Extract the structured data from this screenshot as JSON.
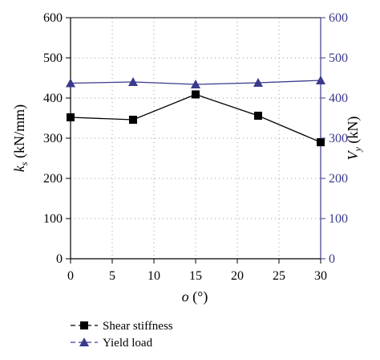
{
  "chart_data": {
    "type": "line",
    "x": [
      0,
      7.5,
      15,
      22.5,
      30
    ],
    "xlabel": "o (°)",
    "xlim": [
      0,
      30
    ],
    "xticks": [
      "0",
      "5",
      "10",
      "15",
      "20",
      "25",
      "30"
    ],
    "ylabel_left": "k_s (kN/mm)",
    "ylabel_right": "V_y (kN)",
    "ylim_left": [
      0,
      600
    ],
    "ylim_right": [
      0,
      600
    ],
    "yticks_left": [
      "0",
      "100",
      "200",
      "300",
      "400",
      "500",
      "600"
    ],
    "yticks_right": [
      "0",
      "100",
      "200",
      "300",
      "400",
      "500",
      "600"
    ],
    "grid": "dotted",
    "legend_position": "bottom-left",
    "series": [
      {
        "name": "Shear stiffness",
        "axis": "left",
        "marker": "square",
        "color": "#000000",
        "values": [
          352,
          346,
          409,
          356,
          290
        ]
      },
      {
        "name": "Yield load",
        "axis": "right",
        "marker": "triangle",
        "color": "#3a3a8c",
        "values": [
          437,
          440,
          434,
          438,
          444
        ]
      }
    ]
  }
}
